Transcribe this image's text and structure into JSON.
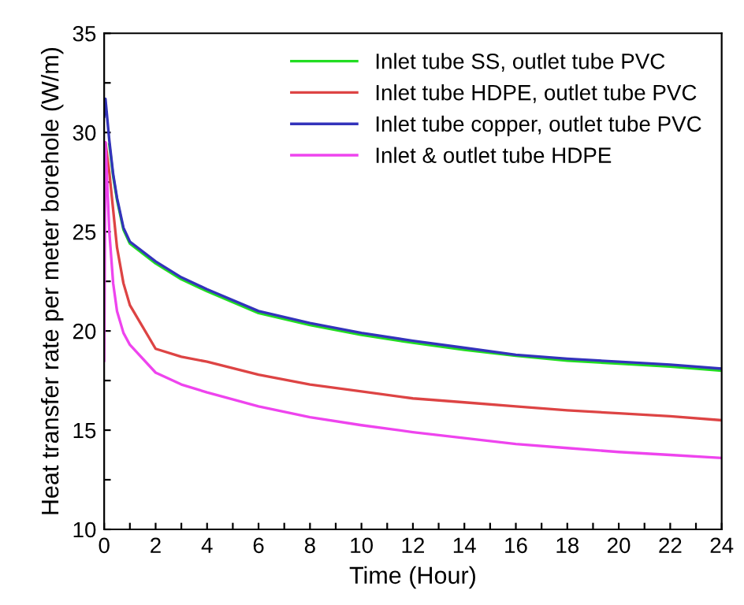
{
  "chart_data": {
    "type": "line",
    "xlabel": "Time (Hour)",
    "ylabel": "Heat transfer rate per meter borehole (W/m)",
    "xlim": [
      0,
      24
    ],
    "ylim": [
      10,
      35
    ],
    "xticks": [
      0,
      {
        "value": 1,
        "label": null
      },
      2,
      {
        "value": 3,
        "label": null
      },
      4,
      {
        "value": 5,
        "label": null
      },
      6,
      {
        "value": 7,
        "label": null
      },
      8,
      {
        "value": 9,
        "label": null
      },
      10,
      {
        "value": 11,
        "label": null
      },
      12,
      {
        "value": 13,
        "label": null
      },
      14,
      {
        "value": 15,
        "label": null
      },
      16,
      {
        "value": 17,
        "label": null
      },
      18,
      {
        "value": 19,
        "label": null
      },
      20,
      {
        "value": 21,
        "label": null
      },
      22,
      {
        "value": 23,
        "label": null
      },
      24
    ],
    "yticks": [
      10,
      {
        "value": 12.5,
        "label": null
      },
      15,
      {
        "value": 17.5,
        "label": null
      },
      20,
      {
        "value": 22.5,
        "label": null
      },
      25,
      {
        "value": 27.5,
        "label": null
      },
      30,
      {
        "value": 32.5,
        "label": null
      },
      35
    ],
    "x": [
      0,
      0.05,
      0.2,
      0.35,
      0.5,
      0.75,
      1,
      2,
      3,
      4,
      6,
      8,
      10,
      12,
      14,
      16,
      18,
      20,
      22,
      24
    ],
    "series": [
      {
        "name": "Inlet tube SS, outlet tube PVC",
        "color": "#22dd22",
        "values": [
          null,
          null,
          29.4,
          27.8,
          26.6,
          25.1,
          24.4,
          23.4,
          22.6,
          22.0,
          20.9,
          20.3,
          19.8,
          19.4,
          19.05,
          18.75,
          18.5,
          18.35,
          18.2,
          18.0
        ]
      },
      {
        "name": "Inlet tube HDPE, outlet tube PVC",
        "color": "#dd4444",
        "values": [
          29.0,
          29.5,
          28.0,
          26.1,
          24.2,
          22.4,
          21.3,
          19.1,
          18.7,
          18.45,
          17.8,
          17.3,
          16.95,
          16.6,
          16.4,
          16.2,
          16.0,
          15.85,
          15.7,
          15.5
        ]
      },
      {
        "name": "Inlet tube copper, outlet tube PVC",
        "color": "#3333bb",
        "values": [
          30.8,
          31.7,
          29.6,
          27.9,
          26.7,
          25.2,
          24.5,
          23.5,
          22.7,
          22.1,
          21.0,
          20.4,
          19.9,
          19.5,
          19.15,
          18.8,
          18.6,
          18.45,
          18.3,
          18.1
        ]
      },
      {
        "name": "Inlet & outlet tube HDPE",
        "color": "#ee44ee",
        "values": [
          18.5,
          29.5,
          25.0,
          22.4,
          21.0,
          19.9,
          19.3,
          17.9,
          17.3,
          16.9,
          16.2,
          15.65,
          15.25,
          14.9,
          14.6,
          14.3,
          14.1,
          13.9,
          13.75,
          13.6
        ]
      }
    ],
    "legend": "top right",
    "grid": false,
    "marker": "none",
    "line_style": "solid"
  }
}
